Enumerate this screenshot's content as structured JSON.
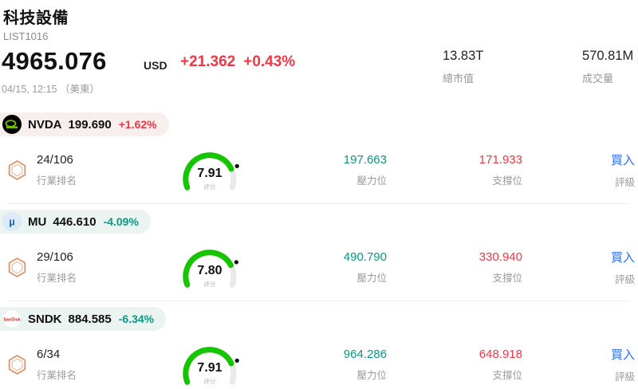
{
  "header": {
    "title": "科技設備",
    "subtitle": "LIST1016"
  },
  "summary": {
    "price": "4965.076",
    "currency": "USD",
    "change": "+21.362",
    "change_pct": "+0.43%",
    "timestamp": "04/15, 12:15 （美東）",
    "stats": [
      {
        "value": "13.83T",
        "label": "總市值"
      },
      {
        "value": "570.81M",
        "label": "成交量"
      }
    ]
  },
  "labels": {
    "rank": "行業排名",
    "score": "評分",
    "resistance": "壓力位",
    "support": "支撐位",
    "rating": "評級"
  },
  "stocks": [
    {
      "ticker": "NVDA",
      "price": "199.690",
      "change_pct": "+1.62%",
      "direction": "up",
      "rank": "24/106",
      "score": "7.91",
      "resistance": "197.663",
      "support": "171.933",
      "rating": "買入"
    },
    {
      "ticker": "MU",
      "price": "446.610",
      "change_pct": "-4.09%",
      "direction": "down",
      "rank": "29/106",
      "score": "7.80",
      "resistance": "490.790",
      "support": "330.940",
      "rating": "買入"
    },
    {
      "ticker": "SNDK",
      "price": "884.585",
      "change_pct": "-6.34%",
      "direction": "down",
      "rank": "6/34",
      "score": "7.91",
      "resistance": "964.286",
      "support": "648.918",
      "rating": "買入"
    }
  ],
  "colors": {
    "up": "#f23645",
    "down": "#089981",
    "rating": "#2b6cff",
    "gauge_green": "#16c400"
  }
}
